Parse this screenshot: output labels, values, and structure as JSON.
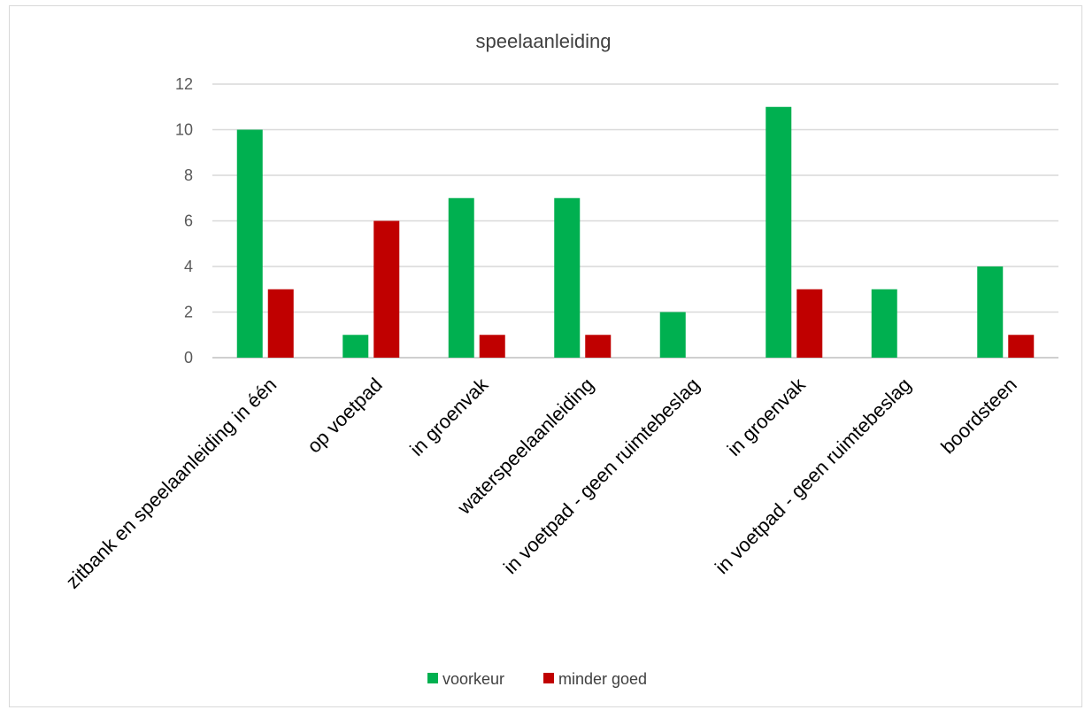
{
  "chart_data": {
    "type": "bar",
    "title": "speelaanleiding",
    "xlabel": "",
    "ylabel": "",
    "ylim": [
      0,
      12
    ],
    "yticks": [
      0,
      2,
      4,
      6,
      8,
      10,
      12
    ],
    "grid": true,
    "legend_position": "bottom",
    "categories": [
      "zitbank en speelaanleiding in één",
      "op voetpad",
      "in groenvak",
      "waterspeelaanleiding",
      "in voetpad - geen ruimtebeslag",
      "in groenvak",
      "in voetpad - geen ruimtebeslag",
      "boordsteen"
    ],
    "series": [
      {
        "name": "voorkeur",
        "color": "#00b050",
        "values": [
          10,
          1,
          7,
          7,
          2,
          11,
          3,
          4
        ]
      },
      {
        "name": "minder goed",
        "color": "#c00000",
        "values": [
          3,
          6,
          1,
          1,
          0,
          3,
          0,
          1
        ]
      }
    ]
  }
}
